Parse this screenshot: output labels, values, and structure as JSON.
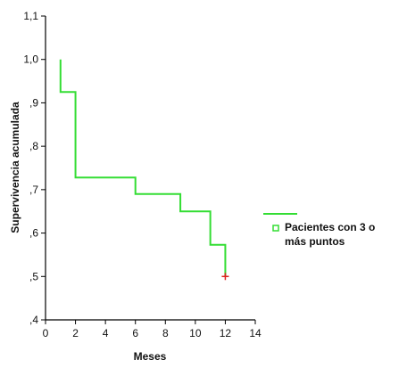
{
  "chart_data": {
    "type": "line",
    "step": true,
    "xlabel": "Meses",
    "ylabel": "Supervivencia acumulada",
    "xlim": [
      0,
      14
    ],
    "ylim": [
      0.4,
      1.1
    ],
    "x_ticks": [
      0,
      2,
      4,
      6,
      8,
      10,
      12,
      14
    ],
    "y_ticks": [
      0.4,
      0.5,
      0.6,
      0.7,
      0.8,
      0.9,
      1.0,
      1.1
    ],
    "x_tick_labels": [
      "0",
      "2",
      "4",
      "6",
      "8",
      "10",
      "12",
      "14"
    ],
    "y_tick_labels": [
      ",4",
      ",5",
      ",6",
      ",7",
      ",8",
      ",9",
      "1,0",
      "1,1"
    ],
    "grid": false,
    "legend_position": "right",
    "series": [
      {
        "name": "Pacientes con 3 o más puntos",
        "color": "#33dd33",
        "x": [
          1,
          1,
          2,
          2,
          6,
          6,
          9,
          9,
          11,
          11,
          12,
          12
        ],
        "y": [
          1.0,
          0.925,
          0.925,
          0.728,
          0.728,
          0.69,
          0.69,
          0.65,
          0.65,
          0.573,
          0.573,
          0.5
        ]
      }
    ],
    "censored": [
      {
        "x": 12,
        "y": 0.5,
        "color": "#e02020"
      }
    ]
  },
  "legend": {
    "line1": "Pacientes con 3 o",
    "line2": "más puntos"
  }
}
